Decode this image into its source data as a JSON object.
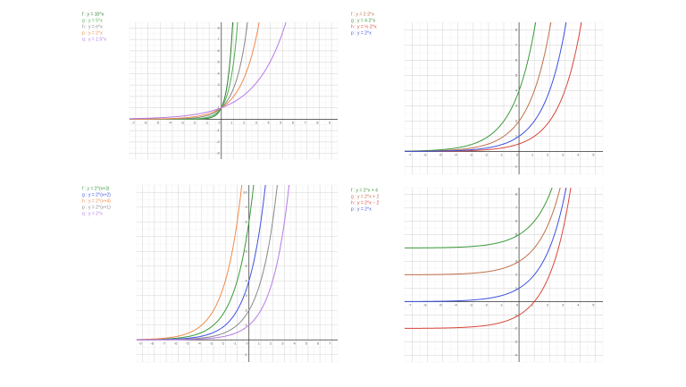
{
  "panels": [
    {
      "xlim": [
        -7.5,
        9.5
      ],
      "ylim": [
        -3.5,
        8.5
      ],
      "xticks": [
        -7,
        -6,
        -5,
        -4,
        -3,
        -2,
        -1,
        0,
        1,
        2,
        3,
        4,
        5,
        6,
        7,
        8,
        9
      ],
      "yticks": [
        -3,
        -2,
        -1,
        1,
        2,
        3,
        4,
        5,
        6,
        7,
        8
      ],
      "functions": [
        {
          "label": "f : y = 10^x",
          "color": "#2e7d32",
          "a": 1,
          "b": 10,
          "h": 0,
          "k": 0
        },
        {
          "label": "g : y = 5^x",
          "color": "#4caf50",
          "a": 1,
          "b": 5,
          "h": 0,
          "k": 0
        },
        {
          "label": "h : y = e^x",
          "color": "#888888",
          "a": 1,
          "b": 2.718,
          "h": 0,
          "k": 0
        },
        {
          "label": "p : y = 2^x",
          "color": "#f08a4b",
          "a": 1,
          "b": 2,
          "h": 0,
          "k": 0
        },
        {
          "label": "q : y = 1.5^x",
          "color": "#b57ae8",
          "a": 1,
          "b": 1.5,
          "h": 0,
          "k": 0
        }
      ]
    },
    {
      "xlim": [
        -7.5,
        5.5
      ],
      "ylim": [
        -1.5,
        8.5
      ],
      "xticks": [
        -7,
        -6,
        -5,
        -4,
        -3,
        -2,
        -1,
        0,
        1,
        2,
        3,
        4,
        5
      ],
      "yticks": [
        -1,
        1,
        2,
        3,
        4,
        5,
        6,
        7,
        8
      ],
      "functions": [
        {
          "label": "f : y = 2·2^x",
          "color": "#c0704a",
          "a": 2,
          "b": 2,
          "h": 0,
          "k": 0
        },
        {
          "label": "g : y = 4·2^x",
          "color": "#3a9a3a",
          "a": 4,
          "b": 2,
          "h": 0,
          "k": 0
        },
        {
          "label": "h : y = ½·2^x",
          "color": "#d9473a",
          "a": 0.5,
          "b": 2,
          "h": 0,
          "k": 0
        },
        {
          "label": "p : y = 2^x",
          "color": "#3f51e0",
          "a": 1,
          "b": 2,
          "h": 0,
          "k": 0
        }
      ]
    },
    {
      "xlim": [
        -9.5,
        7.5
      ],
      "ylim": [
        -1.5,
        10.5
      ],
      "xticks": [
        -9,
        -8,
        -7,
        -6,
        -5,
        -4,
        -3,
        -2,
        -1,
        0,
        1,
        2,
        3,
        4,
        5,
        6,
        7
      ],
      "yticks": [
        -1,
        1,
        2,
        3,
        4,
        5,
        6,
        7,
        8,
        9,
        10
      ],
      "functions": [
        {
          "label": "f : y = 2^(x+3)",
          "color": "#3a9a3a",
          "a": 1,
          "b": 2,
          "h": 3,
          "k": 0
        },
        {
          "label": "g : y = 2^(x+2)",
          "color": "#3f51e0",
          "a": 1,
          "b": 2,
          "h": 2,
          "k": 0
        },
        {
          "label": "h : y = 2^(x+4)",
          "color": "#f08a4b",
          "a": 1,
          "b": 2,
          "h": 4,
          "k": 0
        },
        {
          "label": "p : y = 2^(x+1)",
          "color": "#888888",
          "a": 1,
          "b": 2,
          "h": 1,
          "k": 0
        },
        {
          "label": "q : y = 2^x",
          "color": "#b57ae8",
          "a": 1,
          "b": 2,
          "h": 0,
          "k": 0
        }
      ]
    },
    {
      "xlim": [
        -7.5,
        5.5
      ],
      "ylim": [
        -4.5,
        8.5
      ],
      "xticks": [
        -7,
        -6,
        -5,
        -4,
        -3,
        -2,
        -1,
        0,
        1,
        2,
        3,
        4,
        5
      ],
      "yticks": [
        -4,
        -3,
        -2,
        -1,
        1,
        2,
        3,
        4,
        5,
        6,
        7,
        8
      ],
      "functions": [
        {
          "label": "f : y = 2^x + 4",
          "color": "#3a9a3a",
          "a": 1,
          "b": 2,
          "h": 0,
          "k": 4
        },
        {
          "label": "g : y = 2^x + 2",
          "color": "#c0704a",
          "a": 1,
          "b": 2,
          "h": 0,
          "k": 2
        },
        {
          "label": "h : y = 2^x − 2",
          "color": "#d9473a",
          "a": 1,
          "b": 2,
          "h": 0,
          "k": -2
        },
        {
          "label": "p : y = 2^x",
          "color": "#3f51e0",
          "a": 1,
          "b": 2,
          "h": 0,
          "k": 0
        }
      ]
    }
  ]
}
